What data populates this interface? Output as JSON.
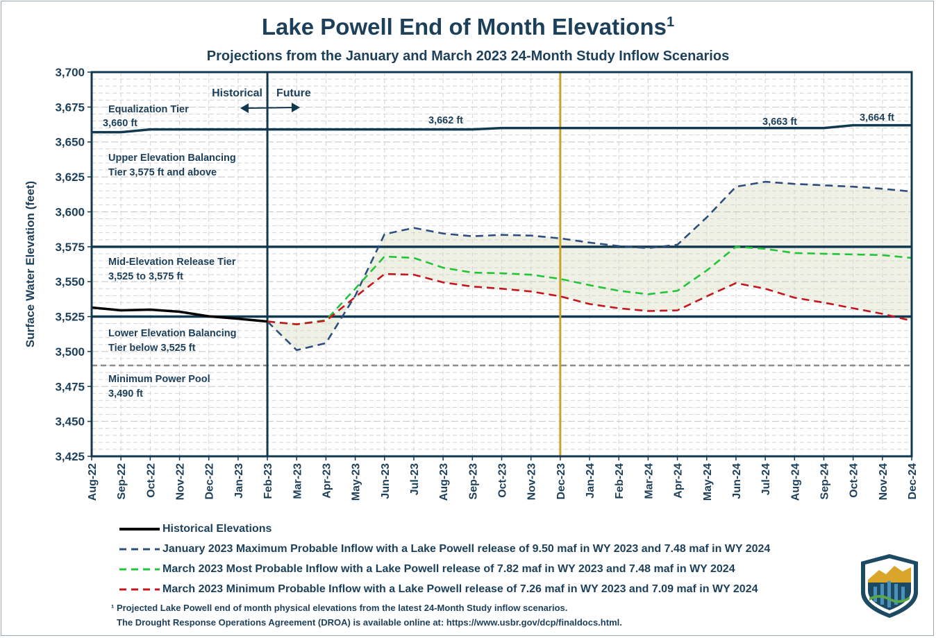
{
  "header": {
    "title": "Lake Powell End of Month Elevations",
    "title_sup": "1",
    "subtitle": "Projections from the January and March 2023 24-Month Study Inflow Scenarios"
  },
  "chart_data": {
    "type": "line",
    "ylabel": "Surface Water Elevation (feet)",
    "ylim": [
      3425,
      3700
    ],
    "y_ticks": [
      "3,425",
      "3,450",
      "3,475",
      "3,500",
      "3,525",
      "3,550",
      "3,575",
      "3,600",
      "3,625",
      "3,650",
      "3,675",
      "3,700"
    ],
    "categories": [
      "Aug-22",
      "Sep-22",
      "Oct-22",
      "Nov-22",
      "Dec-22",
      "Jan-23",
      "Feb-23",
      "Mar-23",
      "Apr-23",
      "May-23",
      "Jun-23",
      "Jul-23",
      "Aug-23",
      "Sep-23",
      "Oct-23",
      "Nov-23",
      "Dec-23",
      "Jan-24",
      "Feb-24",
      "Mar-24",
      "Apr-24",
      "May-24",
      "Jun-24",
      "Jul-24",
      "Aug-24",
      "Sep-24",
      "Oct-24",
      "Nov-24",
      "Dec-24"
    ],
    "series": [
      {
        "name": "Historical Elevations",
        "color": "#000000",
        "style": "solid",
        "values": [
          3531.5,
          3529.5,
          3530,
          3528.5,
          3525.2,
          3523.5,
          3521.5,
          null,
          null,
          null,
          null,
          null,
          null,
          null,
          null,
          null,
          null,
          null,
          null,
          null,
          null,
          null,
          null,
          null,
          null,
          null,
          null,
          null,
          null
        ]
      },
      {
        "name": "January 2023 Maximum Probable Inflow with a Lake Powell release of 9.50 maf in WY 2023 and 7.48 maf in WY 2024",
        "color": "#2c4f7f",
        "style": "dashed",
        "values": [
          null,
          null,
          null,
          null,
          null,
          null,
          3521.5,
          3501,
          3506,
          3540,
          3584,
          3588.5,
          3584.5,
          3582.5,
          3583.5,
          3583,
          3581,
          3578,
          3575.5,
          3574,
          3576.5,
          3596,
          3618,
          3621.5,
          3620,
          3619,
          3618,
          3616.5,
          3614.5
        ]
      },
      {
        "name": "March 2023 Most Probable Inflow with a Lake Powell release of 7.82 maf in WY 2023 and 7.48 maf in WY 2024",
        "color": "#22c43a",
        "style": "dashed",
        "values": [
          null,
          null,
          null,
          null,
          null,
          null,
          3521.5,
          3519.5,
          3522.5,
          3545,
          3568,
          3567,
          3560,
          3556.5,
          3556,
          3555,
          3552,
          3547.5,
          3543.5,
          3541,
          3543.5,
          3558,
          3575,
          3573.5,
          3570.5,
          3570,
          3569.5,
          3569,
          3567
        ]
      },
      {
        "name": "March 2023 Minimum Probable Inflow with a Lake Powell release of 7.26 maf in WY 2023 and 7.09 maf in WY 2024",
        "color": "#c4161c",
        "style": "dashed",
        "values": [
          null,
          null,
          null,
          null,
          null,
          null,
          3521.5,
          3519.5,
          3522,
          3539,
          3555.5,
          3555,
          3549.5,
          3546.5,
          3545,
          3543,
          3539.5,
          3534,
          3531,
          3529,
          3529.5,
          3539.5,
          3549,
          3545,
          3538.5,
          3535,
          3531,
          3527,
          3522
        ]
      },
      {
        "name": "Equalization Tier boundary",
        "color": "#12384f",
        "style": "solid",
        "values": [
          3657,
          3657,
          3659,
          3659,
          3659,
          3659,
          3659,
          3659,
          3659,
          3659,
          3659,
          3659,
          3659,
          3659,
          3660,
          3660,
          3660,
          3660,
          3660,
          3660,
          3660,
          3660,
          3660,
          3660,
          3660,
          3660,
          3662,
          3662,
          3662
        ]
      }
    ],
    "tier_lines": [
      3575,
      3525
    ],
    "min_power_pool": 3490,
    "historical_future_split": "Feb-23",
    "highlight_month": "Dec-23",
    "annotations": {
      "historical": "Historical",
      "future": "Future",
      "eq_tier": "Equalization Tier",
      "eq_value": "3,660 ft",
      "v3662": "3,662 ft",
      "v3663": "3,663 ft",
      "v3664": "3,664 ft",
      "upper_1": "Upper Elevation Balancing",
      "upper_2": "Tier 3,575 ft and above",
      "mid_1": "Mid-Elevation Release Tier",
      "mid_2": "3,525 to 3,575 ft",
      "lower_1": "Lower Elevation Balancing",
      "lower_2": "Tier below 3,525 ft",
      "mpp_1": "Minimum Power Pool",
      "mpp_2": "3,490 ft"
    },
    "colors": {
      "frame": "#12384f",
      "shade": "#eef1e3",
      "highlight": "#c9a227",
      "mpp": "#8c8c8c",
      "grid": "#d4d4d4"
    }
  },
  "legend": [
    "Historical Elevations",
    "January 2023 Maximum Probable Inflow with a Lake Powell release of 9.50 maf in WY 2023 and 7.48 maf in WY 2024",
    "March 2023 Most Probable Inflow with a Lake Powell release of 7.82 maf in WY 2023 and 7.48 maf in WY 2024",
    "March 2023 Minimum Probable Inflow with a Lake Powell release of 7.26 maf in WY 2023 and 7.09 maf in WY 2024"
  ],
  "footnote": {
    "line1": "¹ Projected Lake Powell end of month physical elevations from the latest 24-Month Study inflow scenarios.",
    "line2": "The Drought Response Operations Agreement (DROA) is available online at: https://www.usbr.gov/dcp/finaldocs.html."
  },
  "logo_icon": "bureau-of-reclamation-shield-icon"
}
